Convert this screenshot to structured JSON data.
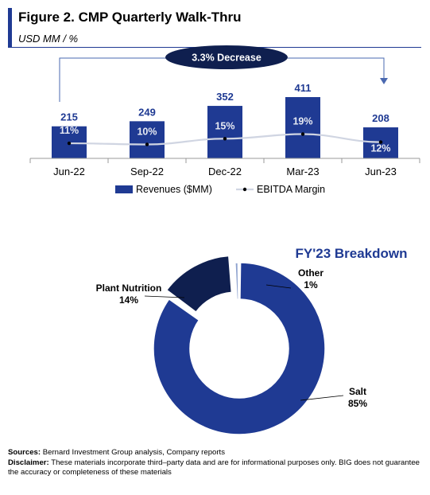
{
  "header": {
    "title": "Figure 2. CMP Quarterly Walk-Thru",
    "subtitle": "USD MM / %"
  },
  "chart_data": [
    {
      "type": "bar",
      "categories": [
        "Jun-22",
        "Sep-22",
        "Dec-22",
        "Mar-23",
        "Jun-23"
      ],
      "series": [
        {
          "name": "Revenues ($MM)",
          "kind": "bar",
          "color": "#1f3a93",
          "values": [
            215,
            249,
            352,
            411,
            208
          ]
        },
        {
          "name": "EBITDA Margin",
          "kind": "line",
          "color": "#d0d5e2",
          "values": [
            11,
            10,
            15,
            19,
            12
          ],
          "labels": [
            "11%",
            "10%",
            "15%",
            "19%",
            "12%"
          ]
        }
      ],
      "annotation": {
        "text": "3.3% Decrease",
        "from": "Jun-22",
        "to": "Jun-23",
        "color": "#1f3a93"
      },
      "legend": "bottom"
    },
    {
      "type": "pie",
      "title": "FY'23 Breakdown",
      "slices": [
        {
          "label": "Salt",
          "pct_label": "85%",
          "value": 85,
          "color": "#1f3a93"
        },
        {
          "label": "Plant Nutrition",
          "pct_label": "14%",
          "value": 14,
          "color": "#0f1f4f"
        },
        {
          "label": "Other",
          "pct_label": "1%",
          "value": 1,
          "color": "#8fa3cf"
        }
      ]
    }
  ],
  "footer": {
    "sources_label": "Sources:",
    "sources_text": "Bernard Investment Group analysis, Company reports",
    "disclaimer_label": "Disclaimer:",
    "disclaimer_text": "These materials incorporate third–party data and are for informational purposes only. BIG does not guarantee the accuracy or completeness of these materials"
  }
}
